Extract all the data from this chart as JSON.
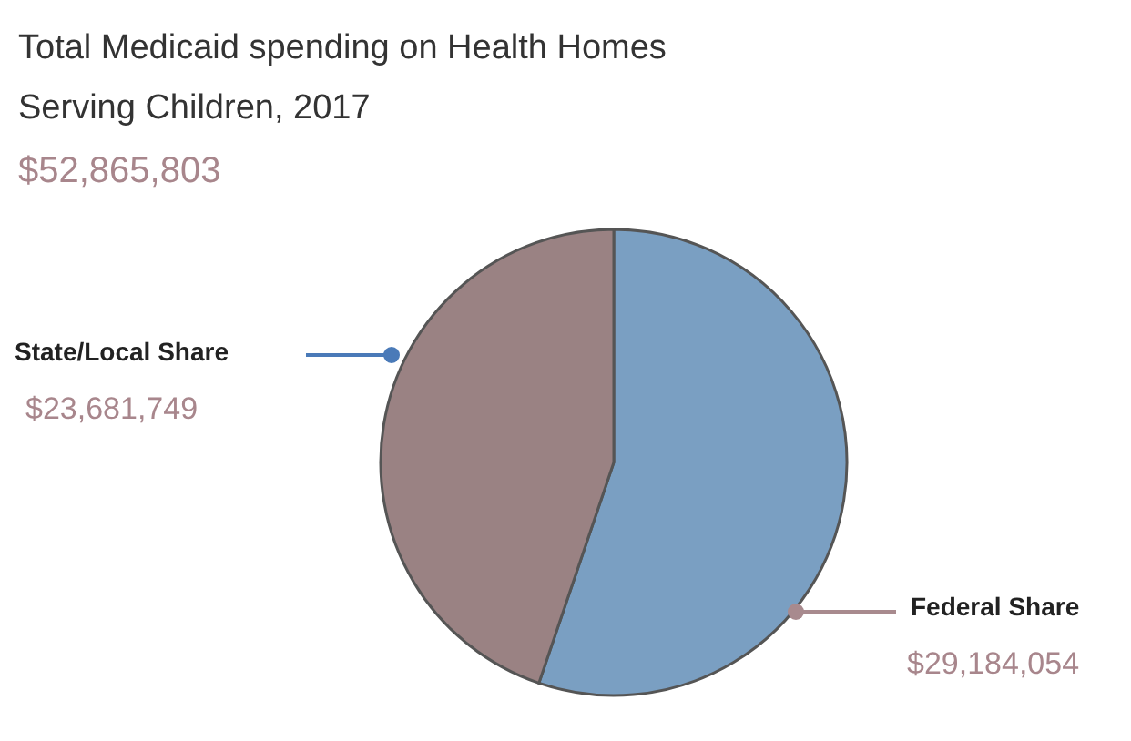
{
  "chart_data": {
    "type": "pie",
    "title": "Total Medicaid spending on Health Homes Serving Children, 2017",
    "subtitle": "$52,865,803",
    "categories": [
      "Federal Share",
      "State/Local Share"
    ],
    "values": [
      29184054,
      23681749
    ],
    "colors": [
      "#7a9fc2",
      "#9a8283"
    ],
    "value_labels": [
      "$29,184,054",
      "$23,681,749"
    ]
  }
}
